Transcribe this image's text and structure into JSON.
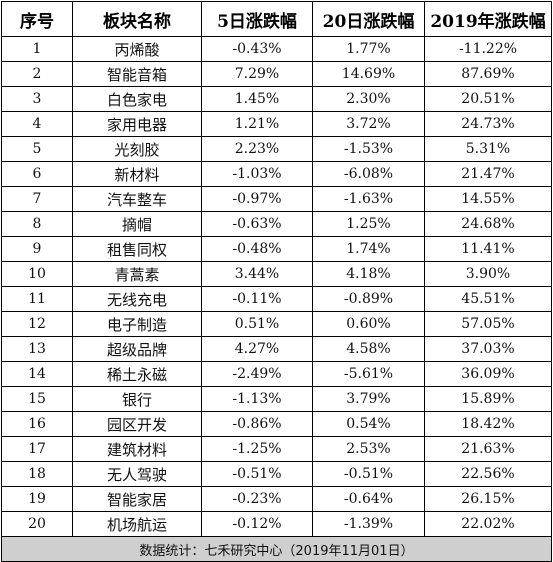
{
  "headers": [
    "序号",
    "板块名称",
    "5日涨跌幅",
    "20日涨跌幅",
    "2019年涨跌幅"
  ],
  "rows": [
    {
      "idx": "1",
      "name": "丙烯酸",
      "d5": "-0.43%",
      "d20": "1.77%",
      "y2019": "-11.22%"
    },
    {
      "idx": "2",
      "name": "智能音箱",
      "d5": "7.29%",
      "d20": "14.69%",
      "y2019": "87.69%"
    },
    {
      "idx": "3",
      "name": "白色家电",
      "d5": "1.45%",
      "d20": "2.30%",
      "y2019": "20.51%"
    },
    {
      "idx": "4",
      "name": "家用电器",
      "d5": "1.21%",
      "d20": "3.72%",
      "y2019": "24.73%"
    },
    {
      "idx": "5",
      "name": "光刻胶",
      "d5": "2.23%",
      "d20": "-1.53%",
      "y2019": "5.31%"
    },
    {
      "idx": "6",
      "name": "新材料",
      "d5": "-1.03%",
      "d20": "-6.08%",
      "y2019": "21.47%"
    },
    {
      "idx": "7",
      "name": "汽车整车",
      "d5": "-0.97%",
      "d20": "-1.63%",
      "y2019": "14.55%"
    },
    {
      "idx": "8",
      "name": "摘帽",
      "d5": "-0.63%",
      "d20": "1.25%",
      "y2019": "24.68%"
    },
    {
      "idx": "9",
      "name": "租售同权",
      "d5": "-0.48%",
      "d20": "1.74%",
      "y2019": "11.41%"
    },
    {
      "idx": "10",
      "name": "青蒿素",
      "d5": "3.44%",
      "d20": "4.18%",
      "y2019": "3.90%"
    },
    {
      "idx": "11",
      "name": "无线充电",
      "d5": "-0.11%",
      "d20": "-0.89%",
      "y2019": "45.51%"
    },
    {
      "idx": "12",
      "name": "电子制造",
      "d5": "0.51%",
      "d20": "0.60%",
      "y2019": "57.05%"
    },
    {
      "idx": "13",
      "name": "超级品牌",
      "d5": "4.27%",
      "d20": "4.58%",
      "y2019": "37.03%"
    },
    {
      "idx": "14",
      "name": "稀土永磁",
      "d5": "-2.49%",
      "d20": "-5.61%",
      "y2019": "36.09%"
    },
    {
      "idx": "15",
      "name": "银行",
      "d5": "-1.13%",
      "d20": "3.79%",
      "y2019": "15.89%"
    },
    {
      "idx": "16",
      "name": "园区开发",
      "d5": "-0.86%",
      "d20": "0.54%",
      "y2019": "18.42%"
    },
    {
      "idx": "17",
      "name": "建筑材料",
      "d5": "-1.25%",
      "d20": "2.53%",
      "y2019": "21.63%"
    },
    {
      "idx": "18",
      "name": "无人驾驶",
      "d5": "-0.51%",
      "d20": "-0.51%",
      "y2019": "22.56%"
    },
    {
      "idx": "19",
      "name": "智能家居",
      "d5": "-0.23%",
      "d20": "-0.64%",
      "y2019": "26.15%"
    },
    {
      "idx": "20",
      "name": "机场航运",
      "d5": "-0.12%",
      "d20": "-1.39%",
      "y2019": "22.02%"
    }
  ],
  "footer": "数据统计：七禾研究中心（2019年11月01日）",
  "colors": {
    "footer_bg": "#cfcfcf",
    "border": "#000000"
  }
}
